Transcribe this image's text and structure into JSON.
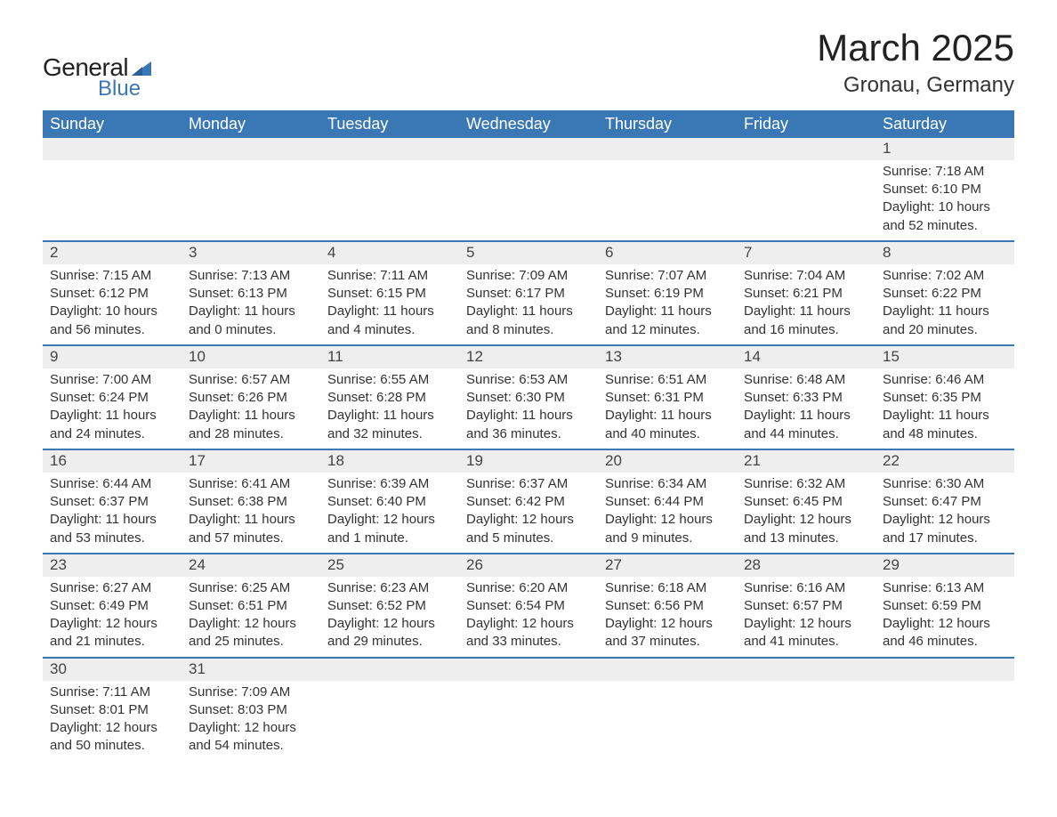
{
  "brand": {
    "word1": "General",
    "word2": "Blue",
    "logo_color": "#3a78b5",
    "text_dark": "#222222"
  },
  "header": {
    "month_title": "March 2025",
    "location": "Gronau, Germany"
  },
  "colors": {
    "header_bg": "#3a78b5",
    "header_text": "#ffffff",
    "daynum_bg": "#eeeeee",
    "row_divider": "#3a78b5",
    "body_text": "#333333",
    "page_bg": "#ffffff"
  },
  "typography": {
    "title_fontsize": 42,
    "location_fontsize": 24,
    "weekday_fontsize": 18,
    "daynum_fontsize": 17,
    "body_fontsize": 15,
    "font_family": "Arial"
  },
  "weekdays": [
    "Sunday",
    "Monday",
    "Tuesday",
    "Wednesday",
    "Thursday",
    "Friday",
    "Saturday"
  ],
  "weeks": [
    [
      null,
      null,
      null,
      null,
      null,
      null,
      {
        "n": "1",
        "sr": "Sunrise: 7:18 AM",
        "ss": "Sunset: 6:10 PM",
        "d1": "Daylight: 10 hours",
        "d2": "and 52 minutes."
      }
    ],
    [
      {
        "n": "2",
        "sr": "Sunrise: 7:15 AM",
        "ss": "Sunset: 6:12 PM",
        "d1": "Daylight: 10 hours",
        "d2": "and 56 minutes."
      },
      {
        "n": "3",
        "sr": "Sunrise: 7:13 AM",
        "ss": "Sunset: 6:13 PM",
        "d1": "Daylight: 11 hours",
        "d2": "and 0 minutes."
      },
      {
        "n": "4",
        "sr": "Sunrise: 7:11 AM",
        "ss": "Sunset: 6:15 PM",
        "d1": "Daylight: 11 hours",
        "d2": "and 4 minutes."
      },
      {
        "n": "5",
        "sr": "Sunrise: 7:09 AM",
        "ss": "Sunset: 6:17 PM",
        "d1": "Daylight: 11 hours",
        "d2": "and 8 minutes."
      },
      {
        "n": "6",
        "sr": "Sunrise: 7:07 AM",
        "ss": "Sunset: 6:19 PM",
        "d1": "Daylight: 11 hours",
        "d2": "and 12 minutes."
      },
      {
        "n": "7",
        "sr": "Sunrise: 7:04 AM",
        "ss": "Sunset: 6:21 PM",
        "d1": "Daylight: 11 hours",
        "d2": "and 16 minutes."
      },
      {
        "n": "8",
        "sr": "Sunrise: 7:02 AM",
        "ss": "Sunset: 6:22 PM",
        "d1": "Daylight: 11 hours",
        "d2": "and 20 minutes."
      }
    ],
    [
      {
        "n": "9",
        "sr": "Sunrise: 7:00 AM",
        "ss": "Sunset: 6:24 PM",
        "d1": "Daylight: 11 hours",
        "d2": "and 24 minutes."
      },
      {
        "n": "10",
        "sr": "Sunrise: 6:57 AM",
        "ss": "Sunset: 6:26 PM",
        "d1": "Daylight: 11 hours",
        "d2": "and 28 minutes."
      },
      {
        "n": "11",
        "sr": "Sunrise: 6:55 AM",
        "ss": "Sunset: 6:28 PM",
        "d1": "Daylight: 11 hours",
        "d2": "and 32 minutes."
      },
      {
        "n": "12",
        "sr": "Sunrise: 6:53 AM",
        "ss": "Sunset: 6:30 PM",
        "d1": "Daylight: 11 hours",
        "d2": "and 36 minutes."
      },
      {
        "n": "13",
        "sr": "Sunrise: 6:51 AM",
        "ss": "Sunset: 6:31 PM",
        "d1": "Daylight: 11 hours",
        "d2": "and 40 minutes."
      },
      {
        "n": "14",
        "sr": "Sunrise: 6:48 AM",
        "ss": "Sunset: 6:33 PM",
        "d1": "Daylight: 11 hours",
        "d2": "and 44 minutes."
      },
      {
        "n": "15",
        "sr": "Sunrise: 6:46 AM",
        "ss": "Sunset: 6:35 PM",
        "d1": "Daylight: 11 hours",
        "d2": "and 48 minutes."
      }
    ],
    [
      {
        "n": "16",
        "sr": "Sunrise: 6:44 AM",
        "ss": "Sunset: 6:37 PM",
        "d1": "Daylight: 11 hours",
        "d2": "and 53 minutes."
      },
      {
        "n": "17",
        "sr": "Sunrise: 6:41 AM",
        "ss": "Sunset: 6:38 PM",
        "d1": "Daylight: 11 hours",
        "d2": "and 57 minutes."
      },
      {
        "n": "18",
        "sr": "Sunrise: 6:39 AM",
        "ss": "Sunset: 6:40 PM",
        "d1": "Daylight: 12 hours",
        "d2": "and 1 minute."
      },
      {
        "n": "19",
        "sr": "Sunrise: 6:37 AM",
        "ss": "Sunset: 6:42 PM",
        "d1": "Daylight: 12 hours",
        "d2": "and 5 minutes."
      },
      {
        "n": "20",
        "sr": "Sunrise: 6:34 AM",
        "ss": "Sunset: 6:44 PM",
        "d1": "Daylight: 12 hours",
        "d2": "and 9 minutes."
      },
      {
        "n": "21",
        "sr": "Sunrise: 6:32 AM",
        "ss": "Sunset: 6:45 PM",
        "d1": "Daylight: 12 hours",
        "d2": "and 13 minutes."
      },
      {
        "n": "22",
        "sr": "Sunrise: 6:30 AM",
        "ss": "Sunset: 6:47 PM",
        "d1": "Daylight: 12 hours",
        "d2": "and 17 minutes."
      }
    ],
    [
      {
        "n": "23",
        "sr": "Sunrise: 6:27 AM",
        "ss": "Sunset: 6:49 PM",
        "d1": "Daylight: 12 hours",
        "d2": "and 21 minutes."
      },
      {
        "n": "24",
        "sr": "Sunrise: 6:25 AM",
        "ss": "Sunset: 6:51 PM",
        "d1": "Daylight: 12 hours",
        "d2": "and 25 minutes."
      },
      {
        "n": "25",
        "sr": "Sunrise: 6:23 AM",
        "ss": "Sunset: 6:52 PM",
        "d1": "Daylight: 12 hours",
        "d2": "and 29 minutes."
      },
      {
        "n": "26",
        "sr": "Sunrise: 6:20 AM",
        "ss": "Sunset: 6:54 PM",
        "d1": "Daylight: 12 hours",
        "d2": "and 33 minutes."
      },
      {
        "n": "27",
        "sr": "Sunrise: 6:18 AM",
        "ss": "Sunset: 6:56 PM",
        "d1": "Daylight: 12 hours",
        "d2": "and 37 minutes."
      },
      {
        "n": "28",
        "sr": "Sunrise: 6:16 AM",
        "ss": "Sunset: 6:57 PM",
        "d1": "Daylight: 12 hours",
        "d2": "and 41 minutes."
      },
      {
        "n": "29",
        "sr": "Sunrise: 6:13 AM",
        "ss": "Sunset: 6:59 PM",
        "d1": "Daylight: 12 hours",
        "d2": "and 46 minutes."
      }
    ],
    [
      {
        "n": "30",
        "sr": "Sunrise: 7:11 AM",
        "ss": "Sunset: 8:01 PM",
        "d1": "Daylight: 12 hours",
        "d2": "and 50 minutes."
      },
      {
        "n": "31",
        "sr": "Sunrise: 7:09 AM",
        "ss": "Sunset: 8:03 PM",
        "d1": "Daylight: 12 hours",
        "d2": "and 54 minutes."
      },
      null,
      null,
      null,
      null,
      null
    ]
  ]
}
